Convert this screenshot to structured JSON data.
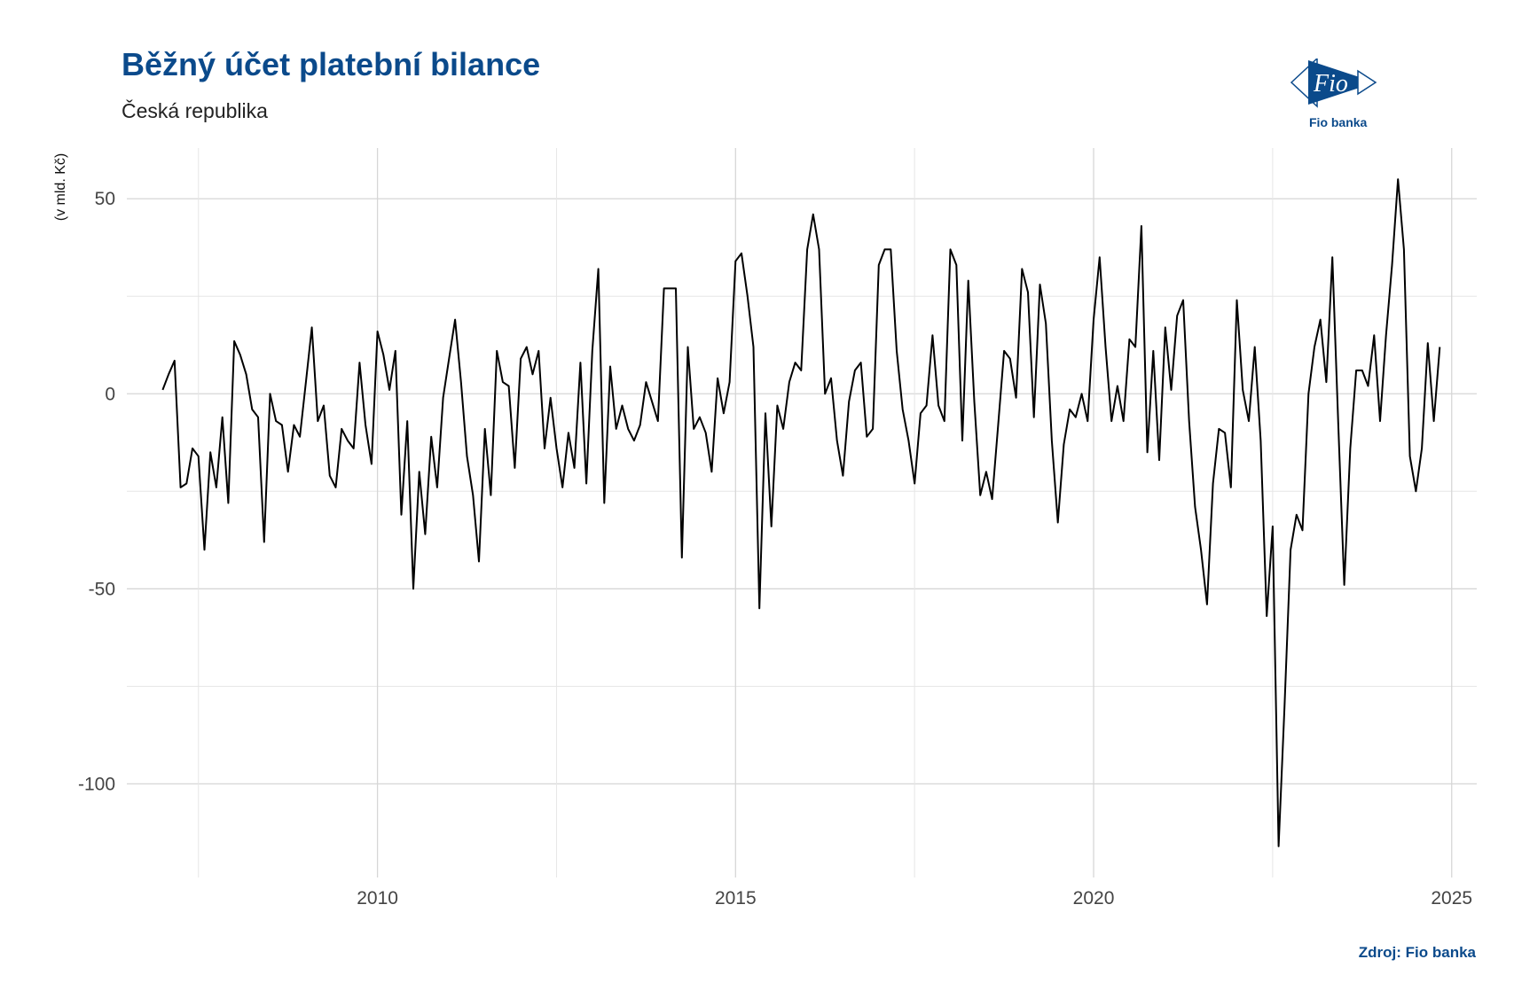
{
  "header": {
    "title": "Běžný účet platební bilance",
    "subtitle": "Česká republika"
  },
  "logo": {
    "text": "Fio banka",
    "mark": "Fio"
  },
  "footer": {
    "source": "Zdroj: Fio banka"
  },
  "colors": {
    "brand": "#0b4a8b",
    "line": "#000000",
    "grid": "#d9d9d9"
  },
  "chart_data": {
    "type": "line",
    "title": "Běžný účet platební bilance",
    "subtitle": "Česká republika",
    "ylabel": "(v mld. Kč)",
    "xlabel": "",
    "xlim": [
      2006.5,
      2025.35
    ],
    "ylim": [
      -124,
      63
    ],
    "x_ticks": [
      2010,
      2015,
      2020,
      2025
    ],
    "x_tick_labels": [
      "2010",
      "2015",
      "2020",
      "2025"
    ],
    "y_ticks": [
      50,
      0,
      -50,
      -100
    ],
    "y_tick_labels": [
      "50",
      "0",
      "-50",
      "-100"
    ],
    "grid": true,
    "legend": "none",
    "series": [
      {
        "x_start": 2007.0,
        "x_step": 0.0833333,
        "values": [
          1,
          5,
          8.5,
          -24,
          -23,
          -14,
          -16,
          -40,
          -15,
          -24,
          -6,
          -28,
          13.5,
          10,
          5,
          -4,
          -6,
          -38,
          0,
          -7,
          -8,
          -20,
          -8,
          -11,
          3,
          17,
          -7,
          -3,
          -21,
          -24,
          -9,
          -12,
          -14,
          8,
          -8,
          -18,
          16,
          10,
          1,
          11,
          -31,
          -7,
          -50,
          -20,
          -36,
          -11,
          -24,
          -1,
          9,
          19,
          3,
          -16,
          -26,
          -43,
          -9,
          -26,
          11,
          3,
          2,
          -19,
          9,
          12,
          5,
          11,
          -14,
          -1,
          -14,
          -24,
          -10,
          -19,
          8,
          -23,
          11,
          32,
          -28,
          7,
          -9,
          -3,
          -9,
          -12,
          -8,
          3,
          -2,
          -7,
          27,
          27,
          27,
          -42,
          12,
          -9,
          -6,
          -10,
          -20,
          4,
          -5,
          3,
          34,
          36,
          25,
          12,
          -55,
          -5,
          -34,
          -3,
          -9,
          3,
          8,
          6,
          37,
          46,
          37,
          0,
          4,
          -12,
          -21,
          -2,
          6,
          8,
          -11,
          -9,
          33,
          37,
          37,
          11,
          -4,
          -12,
          -23,
          -5,
          -3,
          15,
          -3,
          -7,
          37,
          33,
          -12,
          29,
          -2,
          -26,
          -20,
          -27,
          -8,
          11,
          9,
          -1,
          32,
          26,
          -6,
          28,
          18,
          -12,
          -33,
          -13,
          -4,
          -6,
          0,
          -7,
          19,
          35,
          12,
          -7,
          2,
          -7,
          14,
          12,
          43,
          -15,
          11,
          -17,
          17,
          1,
          20,
          24,
          -7,
          -29,
          -40,
          -54,
          -23,
          -9,
          -10,
          -24,
          24,
          1,
          -7,
          12,
          -12,
          -57,
          -34,
          -116,
          -80,
          -40,
          -31,
          -35,
          0,
          12,
          19,
          3,
          35,
          -8,
          -49,
          -14,
          6,
          6,
          2,
          15,
          -7,
          15,
          33,
          55,
          37,
          -16,
          -25,
          -14,
          13,
          -7,
          12
        ]
      }
    ]
  }
}
